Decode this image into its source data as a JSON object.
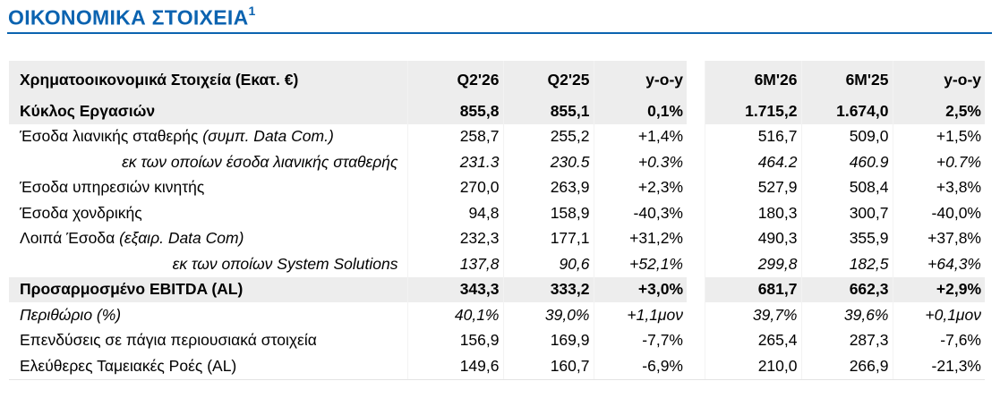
{
  "header": {
    "title": "ΟΙΚΟΝΟΜΙΚΑ ΣΤΟΙΧΕΙΑ",
    "footnote": "1"
  },
  "table": {
    "columns": [
      "Χρηματοοικονομικά Στοιχεία (Εκατ. €)",
      "Q2'26",
      "Q2'25",
      "y-o-y",
      "6M'26",
      "6M'25",
      "y-o-y"
    ],
    "rows": [
      {
        "label": "Κύκλος Εργασιών",
        "values": [
          "855,8",
          "855,1",
          "0,1%",
          "1.715,2",
          "1.674,0",
          "2,5%"
        ]
      },
      {
        "label": "Έσοδα λιανικής σταθερής",
        "note": "(συμπ. Data Com.)",
        "values": [
          "258,7",
          "255,2",
          "+1,4%",
          "516,7",
          "509,0",
          "+1,5%"
        ]
      },
      {
        "label": "εκ των οποίων έσοδα λιανικής σταθερής",
        "values": [
          "231.3",
          "230.5",
          "+0.3%",
          "464.2",
          "460.9",
          "+0.7%"
        ]
      },
      {
        "label": "Έσοδα υπηρεσιών κινητής",
        "values": [
          "270,0",
          "263,9",
          "+2,3%",
          "527,9",
          "508,4",
          "+3,8%"
        ]
      },
      {
        "label": "Έσοδα χονδρικής",
        "values": [
          "94,8",
          "158,9",
          "-40,3%",
          "180,3",
          "300,7",
          "-40,0%"
        ]
      },
      {
        "label": "Λοιπά Έσοδα",
        "note": "(εξαιρ. Data Com)",
        "values": [
          "232,3",
          "177,1",
          "+31,2%",
          "490,3",
          "355,9",
          "+37,8%"
        ]
      },
      {
        "label": "εκ των οποίων System Solutions",
        "values": [
          "137,8",
          "90,6",
          "+52,1%",
          "299,8",
          "182,5",
          "+64,3%"
        ]
      },
      {
        "label": "Προσαρμοσμένο EBITDA (AL)",
        "values": [
          "343,3",
          "333,2",
          "+3,0%",
          "681,7",
          "662,3",
          "+2,9%"
        ]
      },
      {
        "label": "Περιθώριο (%)",
        "values": [
          "40,1%",
          "39,0%",
          "+1,1μον",
          "39,7%",
          "39,6%",
          "+0,1μον"
        ]
      },
      {
        "label": "Επενδύσεις σε πάγια περιουσιακά στοιχεία",
        "values": [
          "156,9",
          "169,9",
          "-7,7%",
          "265,4",
          "287,3",
          "-7,6%"
        ]
      },
      {
        "label": "Ελεύθερες Ταμειακές Ροές (AL)",
        "values": [
          "149,6",
          "160,7",
          "-6,9%",
          "210,0",
          "266,9",
          "-21,3%"
        ]
      }
    ]
  }
}
